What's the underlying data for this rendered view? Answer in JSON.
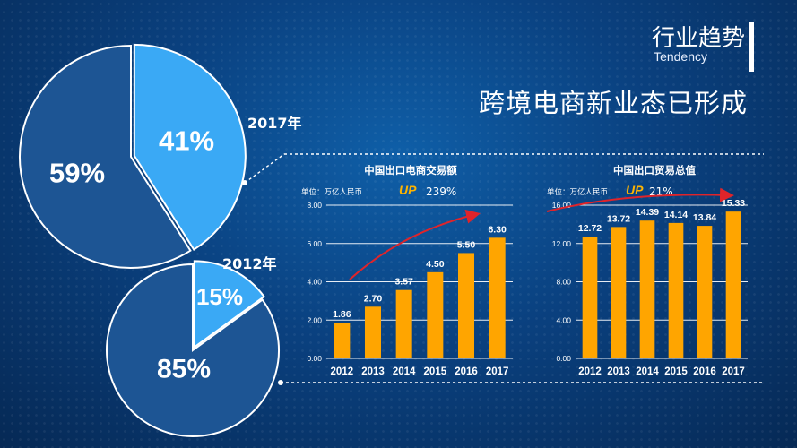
{
  "header": {
    "title": "行业趋势",
    "subtitle": "Tendency",
    "headline": "跨境电商新业态已形成"
  },
  "pies": {
    "pie_2017": {
      "year": "2017年",
      "slices": [
        {
          "label": "41%",
          "value": 41,
          "color": "#3aa9f5"
        },
        {
          "label": "59%",
          "value": 59,
          "color": "#1d5594"
        }
      ]
    },
    "pie_2012": {
      "year": "2012年",
      "slices": [
        {
          "label": "15%",
          "value": 15,
          "color": "#3aa9f5"
        },
        {
          "label": "85%",
          "value": 85,
          "color": "#1d5594"
        }
      ]
    }
  },
  "left_chart": {
    "title": "中国出口电商交易额",
    "unit": "单位：万亿人民币",
    "up_badge": "UP",
    "growth": "239%"
  },
  "right_chart": {
    "title": "中国出口贸易总值",
    "unit": "单位：万亿人民币",
    "up_badge": "UP",
    "growth": "21%"
  },
  "chart_data": [
    {
      "type": "bar",
      "title": "中国出口电商交易额",
      "categories": [
        "2012",
        "2013",
        "2014",
        "2015",
        "2016",
        "2017"
      ],
      "values": [
        1.86,
        2.7,
        3.57,
        4.5,
        5.5,
        6.3
      ],
      "value_labels": [
        "1.86",
        "2.70",
        "3.57",
        "4.50",
        "5.50",
        "6.30"
      ],
      "yticks": [
        "0.00",
        "2.00",
        "4.00",
        "6.00",
        "8.00"
      ],
      "ylim": [
        0,
        8
      ],
      "bar_color": "#ffa500",
      "grid": true
    },
    {
      "type": "bar",
      "title": "中国出口贸易总值",
      "categories": [
        "2012",
        "2013",
        "2014",
        "2015",
        "2016",
        "2017"
      ],
      "values": [
        12.72,
        13.72,
        14.39,
        14.14,
        13.84,
        15.33
      ],
      "value_labels": [
        "12.72",
        "13.72",
        "14.39",
        "14.14",
        "13.84",
        "15.33"
      ],
      "yticks": [
        "0.00",
        "4.00",
        "8.00",
        "12.00",
        "16.00"
      ],
      "ylim": [
        0,
        16
      ],
      "bar_color": "#ffa500",
      "grid": true
    }
  ]
}
